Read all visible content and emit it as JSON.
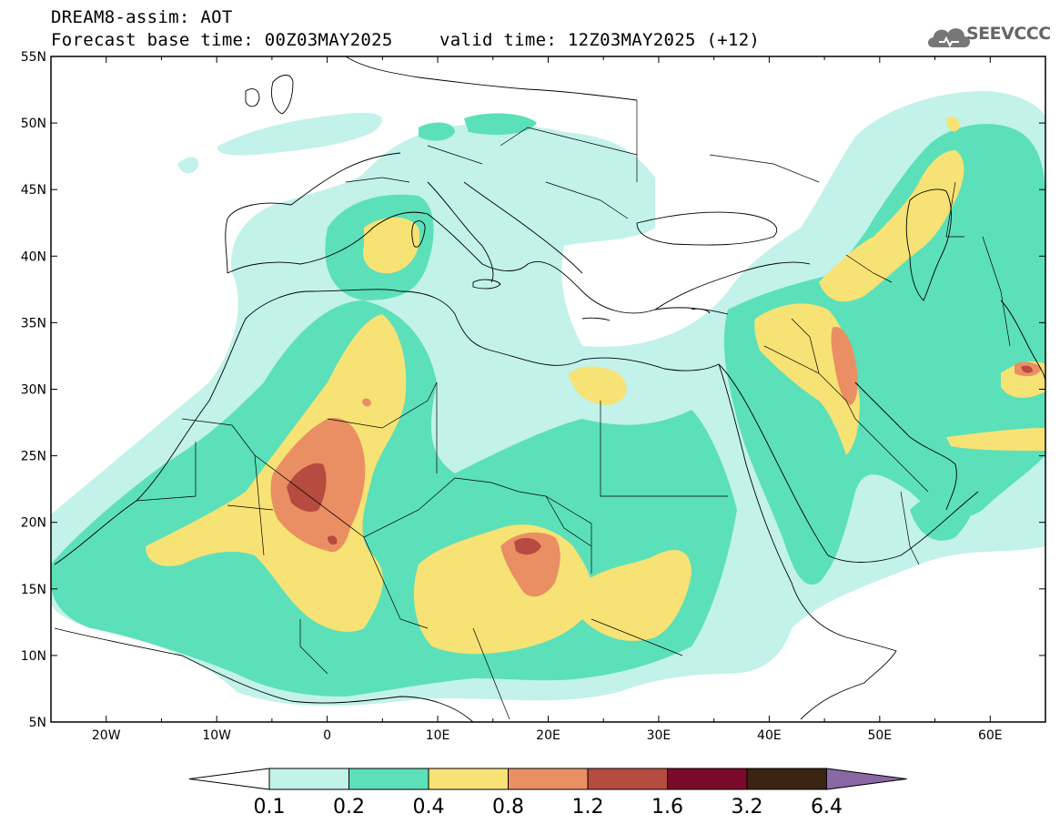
{
  "header": {
    "model_line": "DREAM8-assim: AOT",
    "base_time_line": "Forecast base time: 00Z03MAY2025",
    "valid_time_line": "valid time: 12Z03MAY2025 (+12)",
    "logo_text": "SEEVCCC"
  },
  "axes": {
    "lon_ticks": [
      "20W",
      "10W",
      "0",
      "10E",
      "20E",
      "30E",
      "40E",
      "50E",
      "60E"
    ],
    "lat_ticks": [
      "55N",
      "50N",
      "45N",
      "40N",
      "35N",
      "30N",
      "25N",
      "20N",
      "15N",
      "10N",
      "5N"
    ],
    "lon_range": [
      -25,
      65
    ],
    "lat_range": [
      5,
      55
    ]
  },
  "colorbar": {
    "labels": [
      "0.1",
      "0.2",
      "0.4",
      "0.8",
      "1.2",
      "1.6",
      "3.2",
      "6.4"
    ],
    "colors": [
      "#ffffff",
      "#c2f2ea",
      "#5ce0b9",
      "#f7e275",
      "#ea8f63",
      "#b54c3f",
      "#7b0a2a",
      "#3b2414",
      "#8b67a6"
    ]
  },
  "map_colors": {
    "level_0_1": "#c2f2ea",
    "level_0_2": "#5ce0b9",
    "level_0_4": "#f7e275",
    "level_0_8": "#ea8f63",
    "level_1_2": "#b54c3f"
  }
}
